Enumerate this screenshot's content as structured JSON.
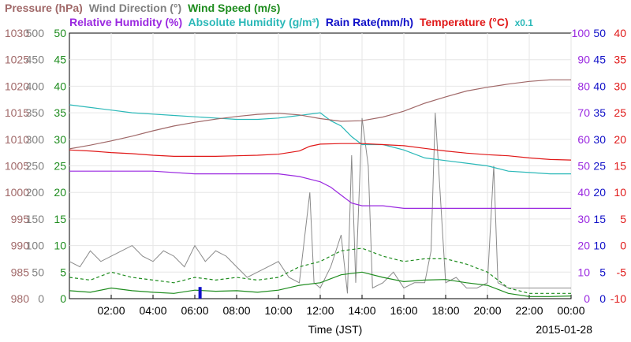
{
  "chart_data": {
    "type": "line",
    "legend_row1": [
      {
        "key": "pressure",
        "label": "Pressure (hPa)",
        "color": "#a06868"
      },
      {
        "key": "wind_dir",
        "label": "Wind Direction (°)",
        "color": "#808080"
      },
      {
        "key": "wind_speed",
        "label": "Wind Speed (m/s)",
        "color": "#1e8c1e"
      }
    ],
    "legend_row2": [
      {
        "key": "rel_hum",
        "label": "Relative Humidity (%)",
        "color": "#9a28e0"
      },
      {
        "key": "abs_hum",
        "label": "Absolute Humidity (g/m³)",
        "color": "#2ab8b8"
      },
      {
        "key": "rain",
        "label": "Rain Rate(mm/h)",
        "color": "#1010c8"
      },
      {
        "key": "temp",
        "label": "Temperature  (°C)",
        "color": "#e01818"
      }
    ],
    "abs_hum_scale_label": "x0.1",
    "xlabel": "Time (JST)",
    "date": "2015-01-28",
    "x_ticks": [
      "02:00",
      "04:00",
      "06:00",
      "08:00",
      "10:00",
      "12:00",
      "14:00",
      "16:00",
      "18:00",
      "20:00",
      "22:00",
      "00:00"
    ],
    "x_range_hours": [
      0,
      24
    ],
    "axes": {
      "pressure": {
        "color": "#a06868",
        "ticks": [
          1030,
          1025,
          1020,
          1015,
          1010,
          1005,
          1000,
          995,
          990,
          985,
          980
        ],
        "range": [
          980,
          1030
        ]
      },
      "wind_dir": {
        "color": "#808080",
        "ticks": [
          500,
          450,
          400,
          350,
          300,
          250,
          200,
          150,
          100,
          50,
          0
        ],
        "range": [
          0,
          500
        ]
      },
      "wind_speed": {
        "color": "#1e8c1e",
        "ticks": [
          50,
          45,
          40,
          35,
          30,
          25,
          20,
          15,
          10,
          5,
          0
        ],
        "range": [
          0,
          50
        ]
      },
      "rel_hum": {
        "color": "#9a28e0",
        "ticks": [
          100,
          90,
          80,
          70,
          60,
          50,
          40,
          30,
          20,
          10,
          0
        ],
        "range": [
          0,
          100
        ]
      },
      "rain": {
        "color": "#1010c8",
        "ticks": [
          50,
          45,
          40,
          35,
          30,
          25,
          20,
          15,
          10,
          5,
          0
        ],
        "range": [
          0,
          50
        ]
      },
      "temp": {
        "color": "#e01818",
        "ticks": [
          40,
          35,
          30,
          25,
          20,
          15,
          10,
          5,
          0,
          -5,
          -10
        ],
        "range": [
          -10,
          40
        ]
      }
    },
    "series": {
      "pressure": {
        "x": [
          0,
          1,
          2,
          3,
          4,
          5,
          6,
          7,
          8,
          9,
          10,
          11,
          12,
          13,
          14,
          15,
          16,
          17,
          18,
          19,
          20,
          21,
          22,
          23,
          24
        ],
        "y": [
          1008.2,
          1008.9,
          1009.7,
          1010.6,
          1011.6,
          1012.5,
          1013.2,
          1013.8,
          1014.3,
          1014.7,
          1014.9,
          1014.6,
          1013.9,
          1013.4,
          1013.5,
          1014.2,
          1015.3,
          1016.8,
          1018.0,
          1019.1,
          1019.8,
          1020.4,
          1020.9,
          1021.2,
          1021.2
        ]
      },
      "wind_direction": {
        "x": [
          0,
          0.5,
          1,
          1.5,
          2,
          2.5,
          3,
          3.5,
          4,
          4.5,
          5,
          5.5,
          6,
          6.5,
          7,
          7.5,
          8,
          8.5,
          9,
          9.5,
          10,
          10.5,
          11,
          11.5,
          11.7,
          12,
          12.5,
          13,
          13.3,
          13.5,
          13.7,
          14,
          14.3,
          14.5,
          15,
          15.5,
          16,
          16.5,
          17,
          17.3,
          17.5,
          18,
          18.5,
          19,
          19.5,
          20,
          20.3,
          20.5,
          21,
          21.5,
          22,
          22.5,
          23,
          23.5,
          24
        ],
        "y": [
          70,
          60,
          90,
          70,
          80,
          90,
          100,
          80,
          70,
          90,
          80,
          60,
          100,
          70,
          90,
          80,
          60,
          40,
          50,
          60,
          70,
          40,
          30,
          200,
          30,
          20,
          60,
          120,
          10,
          270,
          30,
          340,
          250,
          20,
          30,
          50,
          20,
          30,
          30,
          90,
          350,
          30,
          40,
          20,
          20,
          30,
          250,
          30,
          20,
          20,
          20,
          20,
          20,
          20,
          20
        ]
      },
      "wind_speed": {
        "x": [
          0,
          1,
          2,
          3,
          4,
          5,
          6,
          7,
          8,
          9,
          10,
          11,
          12,
          13,
          14,
          15,
          16,
          17,
          18,
          19,
          20,
          21,
          22,
          23,
          24
        ],
        "y": [
          1.5,
          1.2,
          2.0,
          1.5,
          1.2,
          1.0,
          1.6,
          1.4,
          1.5,
          1.2,
          1.6,
          2.5,
          3.0,
          4.5,
          5.0,
          4.0,
          3.2,
          3.5,
          3.6,
          3.0,
          2.5,
          1.0,
          0.4,
          0.4,
          0.5
        ]
      },
      "wind_gust": {
        "x": [
          0,
          1,
          2,
          3,
          4,
          5,
          6,
          7,
          8,
          9,
          10,
          11,
          12,
          13,
          14,
          15,
          16,
          17,
          18,
          19,
          20,
          21,
          22,
          23,
          24
        ],
        "y": [
          4,
          3.5,
          5,
          4,
          3.5,
          3,
          4,
          3.5,
          4,
          3.5,
          4,
          6,
          7,
          9,
          9.5,
          8,
          7,
          7.5,
          7.5,
          6.5,
          5,
          2,
          1,
          1,
          1
        ]
      },
      "rel_humidity": {
        "x": [
          0,
          2,
          4,
          6,
          8,
          10,
          11,
          12,
          12.5,
          13,
          13.5,
          14,
          15,
          16,
          17,
          18,
          19,
          20,
          21,
          22,
          23,
          24
        ],
        "y": [
          48,
          48,
          48,
          47,
          47,
          47,
          46,
          44,
          42,
          39,
          36,
          35,
          35,
          34,
          34,
          34,
          34,
          34,
          34,
          34,
          34,
          34
        ]
      },
      "abs_humidity": {
        "x": [
          0,
          1,
          2,
          3,
          4,
          5,
          6,
          7,
          8,
          9,
          10,
          11,
          12,
          12.5,
          13,
          13.5,
          14,
          15,
          16,
          17,
          18,
          19,
          20,
          21,
          22,
          23,
          24
        ],
        "y": [
          7.3,
          7.2,
          7.1,
          7.0,
          6.95,
          6.9,
          6.85,
          6.8,
          6.75,
          6.75,
          6.8,
          6.9,
          7.0,
          6.7,
          6.5,
          6.1,
          5.8,
          5.8,
          5.6,
          5.3,
          5.2,
          5.1,
          5.0,
          4.8,
          4.75,
          4.7,
          4.7
        ]
      },
      "temperature": {
        "x": [
          0,
          1,
          2,
          3,
          4,
          5,
          6,
          7,
          8,
          9,
          10,
          11,
          11.5,
          12,
          13,
          14,
          15,
          16,
          17,
          18,
          19,
          20,
          21,
          22,
          23,
          24
        ],
        "y": [
          18.0,
          17.8,
          17.5,
          17.3,
          17.0,
          16.8,
          16.8,
          16.8,
          16.9,
          17.0,
          17.2,
          17.8,
          18.7,
          19.1,
          19.2,
          19.2,
          19.0,
          18.8,
          18.3,
          17.8,
          17.4,
          17.1,
          16.9,
          16.5,
          16.2,
          16.1
        ]
      },
      "rain_rate": {
        "x": [
          6.0,
          6.25
        ],
        "y": [
          0,
          2.2
        ]
      }
    }
  }
}
